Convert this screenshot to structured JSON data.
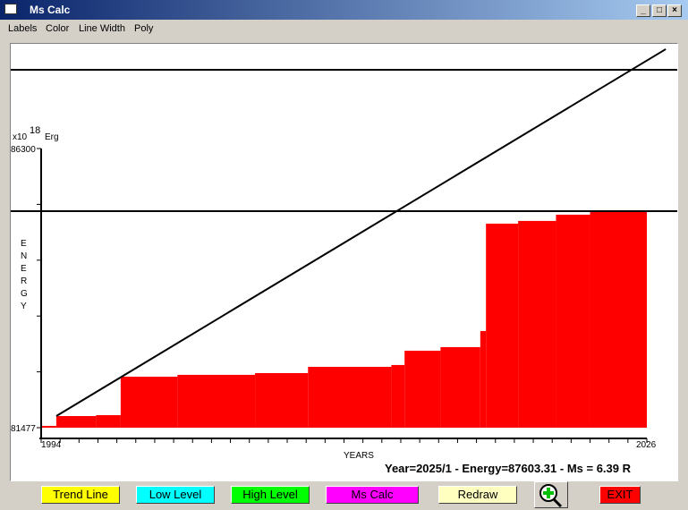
{
  "window": {
    "title": "Ms Calc",
    "icon": "app-icon"
  },
  "menu": [
    "Labels",
    "Color",
    "Line Width",
    "Poly"
  ],
  "buttons": [
    {
      "label": "Trend Line",
      "color": "#ffff00"
    },
    {
      "label": "Low Level",
      "color": "#00ffff"
    },
    {
      "label": "High Level",
      "color": "#00ff00"
    },
    {
      "label": "Ms Calc",
      "color": "#ff00ff"
    },
    {
      "label": "Redraw",
      "color": "#ffffc0"
    },
    {
      "label": "EXIT",
      "color": "#ff0000"
    }
  ],
  "zoom_icon": "zoom-in-icon",
  "status": "Year=2025/1 - Energy=87603.31 - Ms = 6.39 R",
  "chart_data": {
    "type": "area",
    "step": true,
    "unit_prefix": "x10",
    "unit_exp": "18",
    "unit": "Erg",
    "ylabel": "ENERGY",
    "xlabel": "YEARS",
    "xlim": [
      1994,
      2026
    ],
    "ylim": [
      81477,
      86300
    ],
    "xtick_labels": [
      "1994",
      "2026"
    ],
    "ytick_labels": [
      "81477",
      "86300"
    ],
    "fill_color": "#ff0000",
    "x": [
      1994,
      1994.8,
      1996.9,
      1998.2,
      2001.2,
      2005.3,
      2008.1,
      2012.5,
      2013.2,
      2015.1,
      2017.2,
      2017.5,
      2019.2,
      2021.2,
      2023.0
    ],
    "y": [
      81508,
      81678,
      81694,
      82358,
      82390,
      82420,
      82528,
      82560,
      82807,
      82869,
      83147,
      85002,
      85049,
      85157,
      85203
    ],
    "levels": [
      {
        "name": "Low Level",
        "y": 85218
      },
      {
        "name": "High Level",
        "y": 87661
      }
    ],
    "trend_line": {
      "x": [
        1994.8,
        2027.0
      ],
      "y": [
        81678,
        88017
      ]
    }
  }
}
